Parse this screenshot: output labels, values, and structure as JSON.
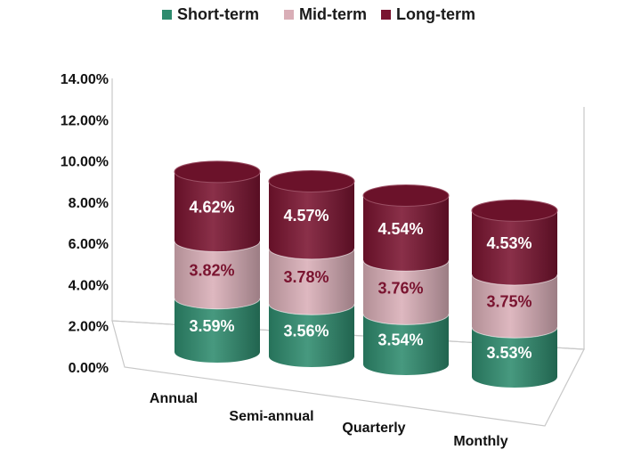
{
  "chart_data": {
    "type": "bar",
    "stacked": true,
    "style": "3d-cylinder",
    "categories": [
      "Annual",
      "Semi-annual",
      "Quarterly",
      "Monthly"
    ],
    "series": [
      {
        "name": "Short-term",
        "color": "#2e8b6e",
        "label_color": "#ffffff",
        "values": [
          3.59,
          3.56,
          3.54,
          3.53
        ],
        "labels": [
          "3.59%",
          "3.56%",
          "3.54%",
          "3.53%"
        ]
      },
      {
        "name": "Mid-term",
        "color": "#d9aeb7",
        "label_color": "#7a1430",
        "values": [
          3.82,
          3.78,
          3.76,
          3.75
        ],
        "labels": [
          "3.82%",
          "3.78%",
          "3.76%",
          "3.75%"
        ]
      },
      {
        "name": "Long-term",
        "color": "#7a1430",
        "label_color": "#ffffff",
        "values": [
          4.62,
          4.57,
          4.54,
          4.53
        ],
        "labels": [
          "4.62%",
          "4.57%",
          "4.54%",
          "4.53%"
        ]
      }
    ],
    "y_ticks": [
      "0.00%",
      "2.00%",
      "4.00%",
      "6.00%",
      "8.00%",
      "10.00%",
      "12.00%",
      "14.00%"
    ],
    "ylim": [
      0,
      14
    ],
    "legend_position": "top",
    "grid": false
  }
}
